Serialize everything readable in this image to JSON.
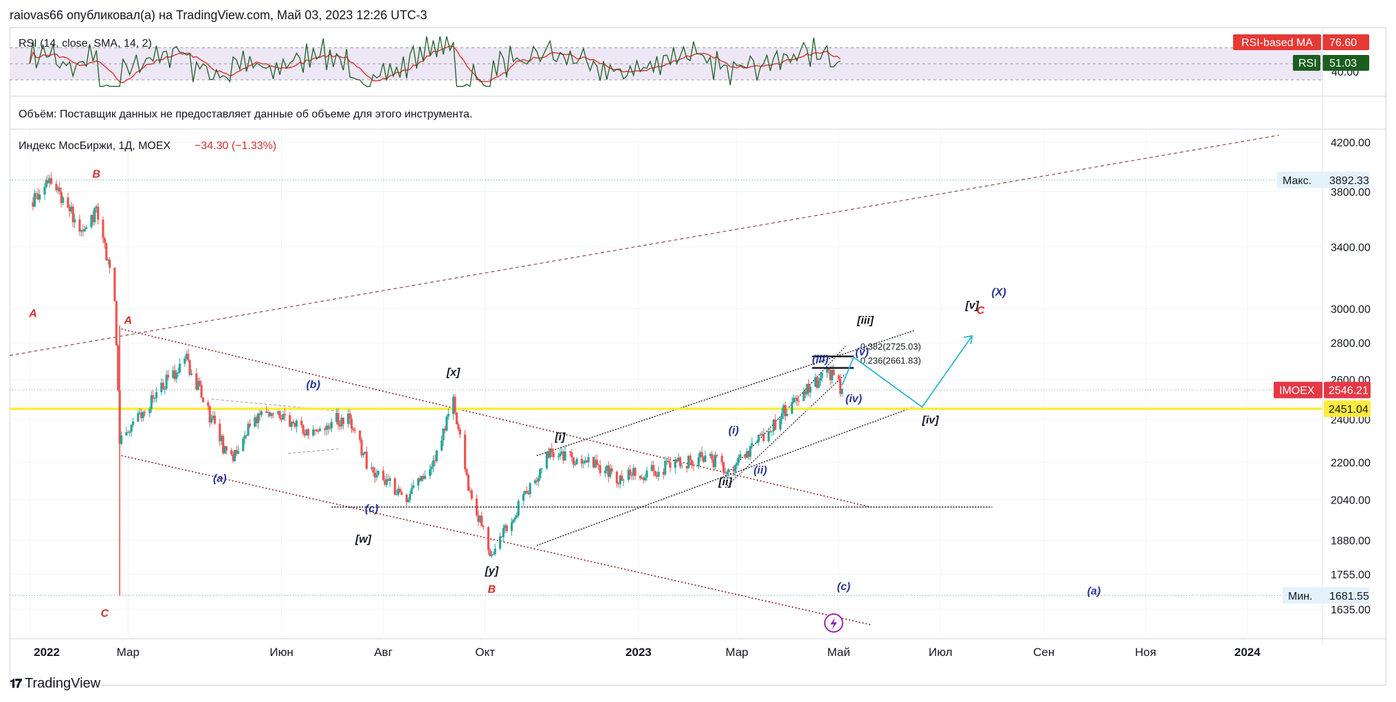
{
  "header": {
    "text": "raiovas66 опубликовал(а) на TradingView.com, Май 03, 2023 12:26 UTC-3"
  },
  "footer": {
    "brand": "TradingView",
    "logo_icon": "tradingview-logo-icon"
  },
  "rsi_pane": {
    "title": "RSI (14, close, SMA, 14, 2)",
    "ma_badge_label": "RSI-based MA",
    "ma_badge_value": "76.60",
    "rsi_badge_label": "RSI",
    "rsi_badge_value": "51.03",
    "axis_label": "40.00",
    "band_upper": 70,
    "band_lower": 30,
    "colors": {
      "rsi": "#1b5e20",
      "ma": "#e53935",
      "band": "#ede7f6"
    }
  },
  "volume_pane": {
    "text": "Объём: Поставщик данных не предоставляет данные об объеме для этого инструмента."
  },
  "main_pane": {
    "title": "Индекс МосБиржи, 1Д, MOEX",
    "change": "−34.30 (−1.33%)",
    "max_label": "Макс.",
    "max_value": "3892.33",
    "min_label": "Мин.",
    "min_value": "1681.55",
    "price_badge_label": "IMOEX",
    "price_badge_value": "2546.21",
    "level_badge_value": "2451.04",
    "fib1": "0.382(2725.03)",
    "fib2": "0.236(2661.83)"
  },
  "chart_data": {
    "type": "candlestick",
    "title": "Индекс МосБиржи, 1Д, MOEX",
    "y_ticks": [
      "4200.00",
      "3800.00",
      "3400.00",
      "3000.00",
      "2800.00",
      "2600.00",
      "2400.00",
      "2200.00",
      "2040.00",
      "1880.00",
      "1755.00",
      "1635.00"
    ],
    "x_ticks": [
      "2022",
      "Мар",
      "Июн",
      "Авг",
      "Окт",
      "2023",
      "Мар",
      "Май",
      "Июл",
      "Сен",
      "Ноя",
      "2024"
    ],
    "bold_x_ticks": [
      "2022",
      "2023",
      "2024"
    ],
    "key_levels": {
      "max": 3892.33,
      "min": 1681.55,
      "last": 2546.21,
      "horizontal": 2451.04
    },
    "price_path": [
      [
        "2022-01-01",
        3720
      ],
      [
        "2022-01-15",
        3880
      ],
      [
        "2022-02-01",
        3500
      ],
      [
        "2022-02-10",
        3650
      ],
      [
        "2022-02-21",
        3050
      ],
      [
        "2022-02-24",
        2300
      ],
      [
        "2022-03-25",
        2600
      ],
      [
        "2022-04-05",
        2700
      ],
      [
        "2022-04-20",
        2400
      ],
      [
        "2022-05-01",
        2200
      ],
      [
        "2022-05-20",
        2450
      ],
      [
        "2022-06-15",
        2350
      ],
      [
        "2022-07-10",
        2410
      ],
      [
        "2022-07-25",
        2150
      ],
      [
        "2022-08-15",
        2060
      ],
      [
        "2022-08-30",
        2180
      ],
      [
        "2022-09-12",
        2480
      ],
      [
        "2022-09-22",
        2050
      ],
      [
        "2022-10-01",
        1900
      ],
      [
        "2022-10-05",
        1810
      ],
      [
        "2022-10-20",
        2000
      ],
      [
        "2022-11-10",
        2250
      ],
      [
        "2022-12-01",
        2200
      ],
      [
        "2022-12-20",
        2130
      ],
      [
        "2023-01-20",
        2180
      ],
      [
        "2023-02-10",
        2230
      ],
      [
        "2023-02-25",
        2170
      ],
      [
        "2023-03-15",
        2300
      ],
      [
        "2023-04-05",
        2500
      ],
      [
        "2023-04-25",
        2640
      ],
      [
        "2023-05-03",
        2546
      ]
    ],
    "wave_labels": [
      {
        "text": "A",
        "date": "2022-01-03",
        "price": 2950,
        "color": "#d32f2f"
      },
      {
        "text": "B",
        "date": "2022-02-10",
        "price": 3910,
        "color": "#d32f2f"
      },
      {
        "text": "A",
        "date": "2022-03-01",
        "price": 2910,
        "color": "#d32f2f"
      },
      {
        "text": "C",
        "date": "2022-02-15",
        "price": 1610,
        "color": "#d32f2f"
      },
      {
        "text": "(a)",
        "date": "2022-04-25",
        "price": 2115,
        "color": "#283593"
      },
      {
        "text": "(b)",
        "date": "2022-06-20",
        "price": 2555,
        "color": "#283593"
      },
      {
        "text": "(c)",
        "date": "2022-07-25",
        "price": 1990,
        "color": "#283593"
      },
      {
        "text": "[w]",
        "date": "2022-07-20",
        "price": 1870,
        "color": "#131722"
      },
      {
        "text": "[x]",
        "date": "2022-09-12",
        "price": 2620,
        "color": "#131722"
      },
      {
        "text": "[y]",
        "date": "2022-10-05",
        "price": 1755,
        "color": "#131722"
      },
      {
        "text": "B",
        "date": "2022-10-05",
        "price": 1690,
        "color": "#d32f2f"
      },
      {
        "text": "[i]",
        "date": "2022-11-15",
        "price": 2300,
        "color": "#131722"
      },
      {
        "text": "[ii]",
        "date": "2023-02-22",
        "price": 2100,
        "color": "#131722"
      },
      {
        "text": "(i)",
        "date": "2023-02-27",
        "price": 2330,
        "color": "#283593"
      },
      {
        "text": "(ii)",
        "date": "2023-03-15",
        "price": 2150,
        "color": "#283593"
      },
      {
        "text": "(iii)",
        "date": "2023-04-20",
        "price": 2690,
        "color": "#283593"
      },
      {
        "text": "(iv)",
        "date": "2023-05-10",
        "price": 2485,
        "color": "#283593"
      },
      {
        "text": "(v)",
        "date": "2023-05-15",
        "price": 2730,
        "color": "#283593"
      },
      {
        "text": "[iii]",
        "date": "2023-05-17",
        "price": 2910,
        "color": "#131722"
      },
      {
        "text": "[iv]",
        "date": "2023-06-25",
        "price": 2380,
        "color": "#131722"
      },
      {
        "text": "[v]",
        "date": "2023-07-20",
        "price": 3000,
        "color": "#131722"
      },
      {
        "text": "C",
        "date": "2023-07-25",
        "price": 2970,
        "color": "#d32f2f"
      },
      {
        "text": "(X)",
        "date": "2023-08-05",
        "price": 3080,
        "color": "#283593"
      },
      {
        "text": "(c)",
        "date": "2023-05-04",
        "price": 1700,
        "color": "#283593"
      },
      {
        "text": "(a)",
        "date": "2023-10-01",
        "price": 1685,
        "color": "#283593"
      }
    ],
    "projection_path": [
      [
        "2023-05-03",
        2570
      ],
      [
        "2023-05-10",
        2720
      ],
      [
        "2023-06-20",
        2460
      ],
      [
        "2023-07-20",
        2840
      ]
    ]
  }
}
